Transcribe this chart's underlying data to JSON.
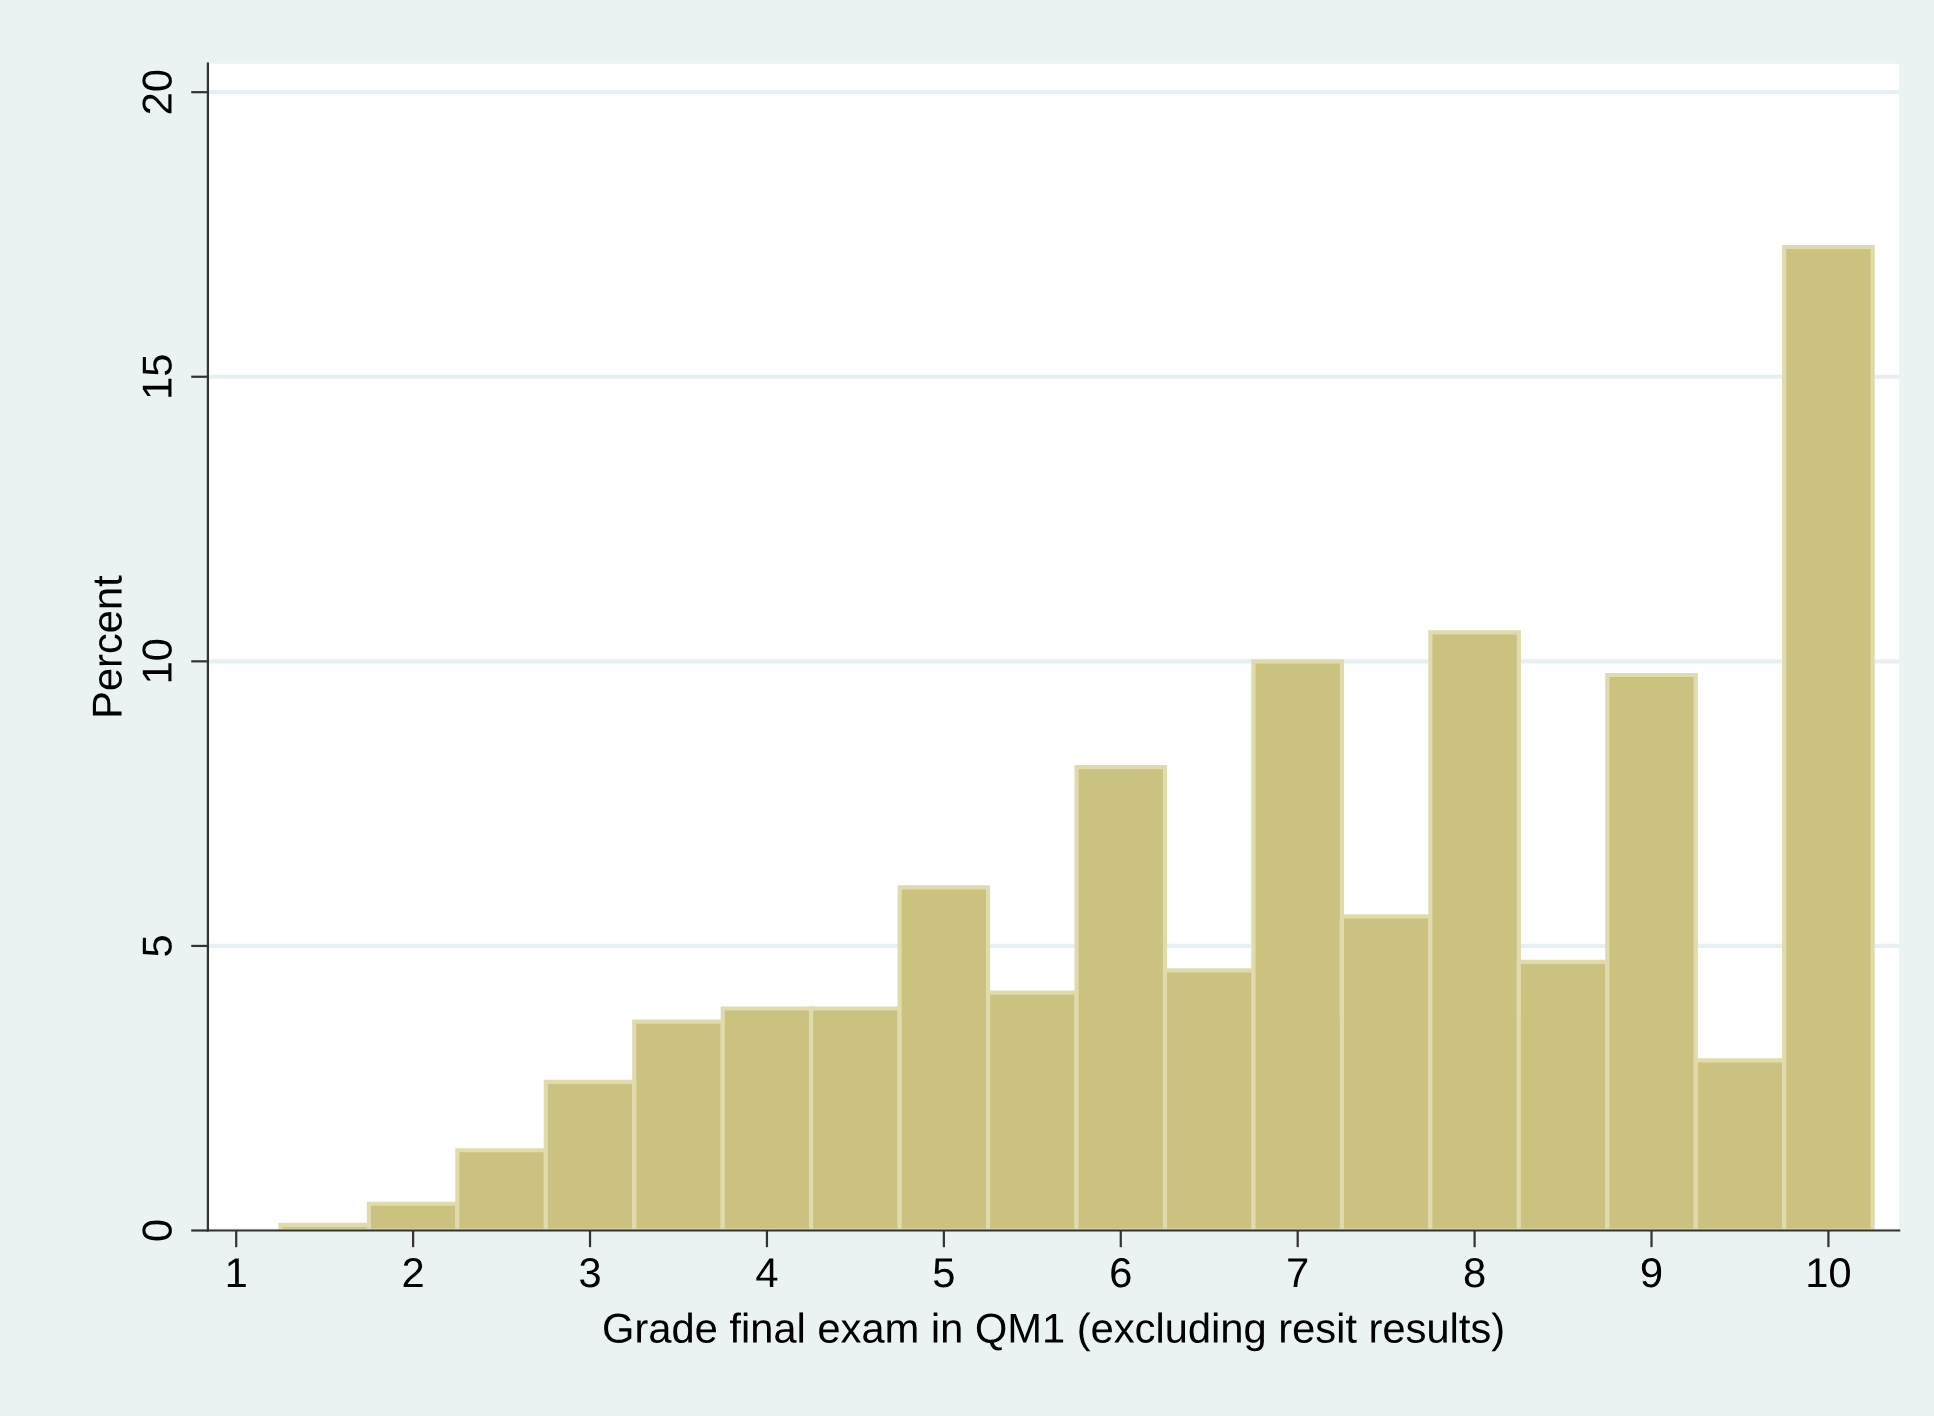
{
  "chart_data": {
    "type": "histogram",
    "xlabel": "Grade final exam in QM1 (excluding resit results)",
    "ylabel": "Percent",
    "bins": [
      1.25,
      1.75,
      2.25,
      2.75,
      3.25,
      3.75,
      4.25,
      4.75,
      5.25,
      5.75,
      6.25,
      6.75,
      7.25,
      7.75,
      8.25,
      8.75,
      9.25,
      9.75,
      10.25
    ],
    "values": [
      0.1,
      0.47,
      1.41,
      2.61,
      3.67,
      3.9,
      3.9,
      6.03,
      4.18,
      8.14,
      4.57,
      10.0,
      5.52,
      10.51,
      4.72,
      9.76,
      2.99,
      17.28
    ],
    "color": "#cbc27f",
    "xlim": [
      0.84,
      10.4
    ],
    "ylim": [
      0,
      20.5
    ],
    "xticks": [
      1,
      2,
      3,
      4,
      5,
      6,
      7,
      8,
      9,
      10
    ],
    "yticks": [
      0,
      5,
      10,
      15,
      20
    ],
    "grid": "y",
    "legend": false
  }
}
